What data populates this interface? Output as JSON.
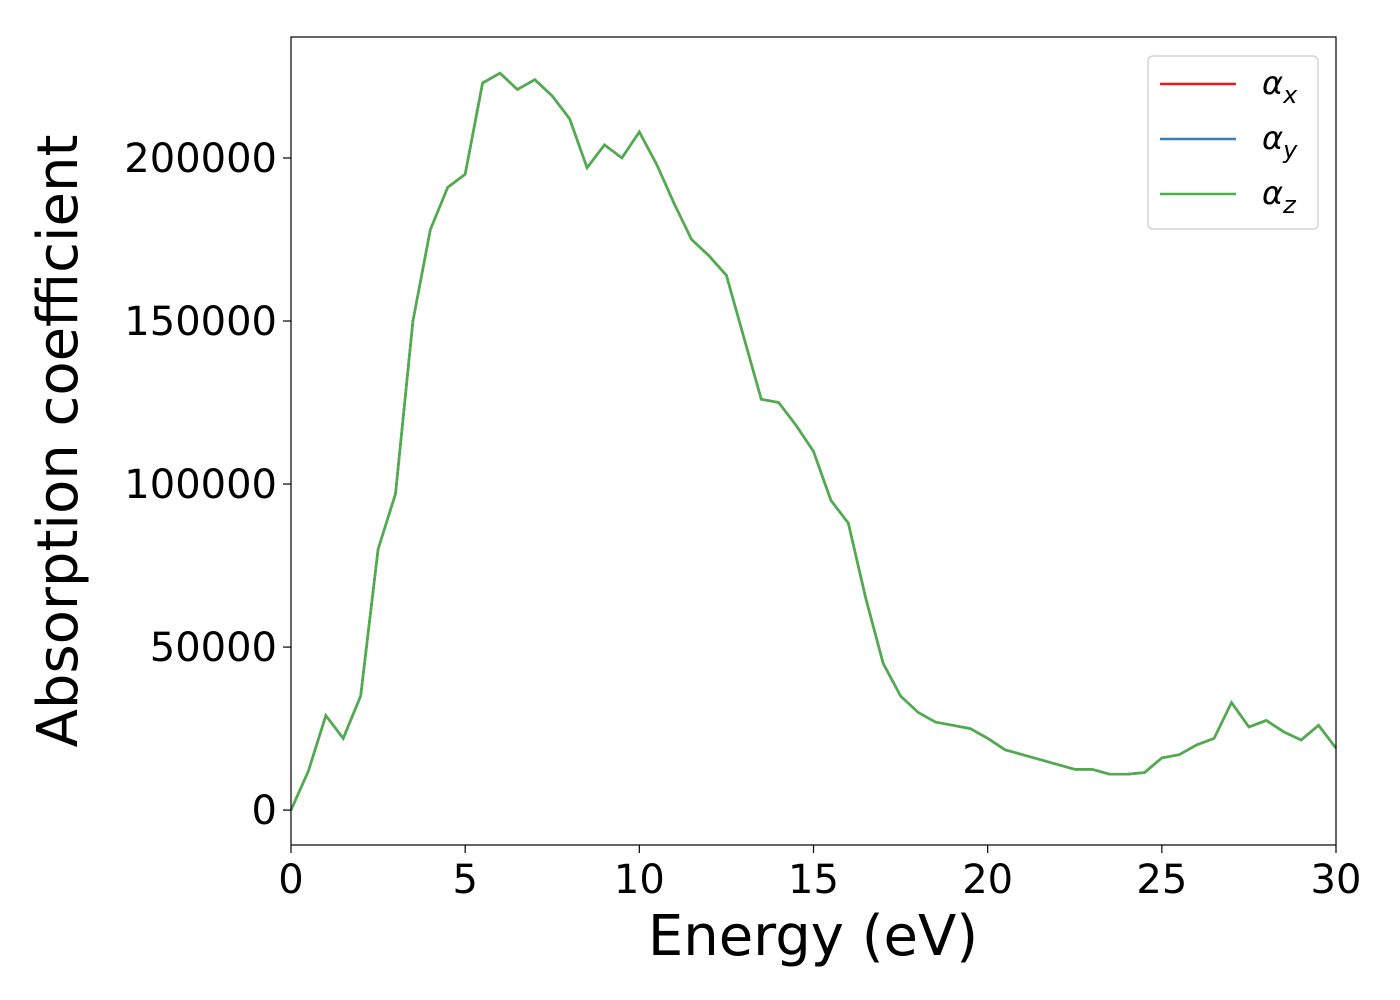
{
  "chart_data": {
    "type": "line",
    "xlabel": "Energy (eV)",
    "ylabel": "Absorption coefficient",
    "x": [
      0,
      0.5,
      1,
      1.5,
      2,
      2.5,
      3,
      3.5,
      4,
      4.5,
      5,
      5.5,
      6,
      6.5,
      7,
      7.5,
      8,
      8.5,
      9,
      9.5,
      10,
      10.5,
      11,
      11.5,
      12,
      12.5,
      13,
      13.5,
      14,
      14.5,
      15,
      15.5,
      16,
      16.5,
      17,
      17.5,
      18,
      18.5,
      19,
      19.5,
      20,
      20.5,
      21,
      21.5,
      22,
      22.5,
      23,
      23.5,
      24,
      24.5,
      25,
      25.5,
      26,
      26.5,
      27,
      27.5,
      28,
      28.5,
      29,
      29.5,
      30
    ],
    "series": [
      {
        "name": "αx",
        "color": "#e41a1c",
        "values": [
          0,
          12000,
          29000,
          22000,
          35000,
          80000,
          97000,
          150000,
          178000,
          191000,
          195000,
          223000,
          226000,
          221000,
          224000,
          219000,
          212000,
          197000,
          204000,
          200000,
          208000,
          198000,
          186000,
          175000,
          170000,
          164000,
          145000,
          126000,
          125000,
          118000,
          110000,
          95000,
          88000,
          65000,
          45000,
          35000,
          30000,
          27000,
          26000,
          25000,
          22000,
          18500,
          17000,
          15500,
          14000,
          12500,
          12500,
          11000,
          11000,
          11500,
          16000,
          17000,
          20000,
          22000,
          33000,
          25500,
          27500,
          24000,
          21500,
          26000,
          19000
        ]
      },
      {
        "name": "αy",
        "color": "#377eb8",
        "values": [
          0,
          12000,
          29000,
          22000,
          35000,
          80000,
          97000,
          150000,
          178000,
          191000,
          195000,
          223000,
          226000,
          221000,
          224000,
          219000,
          212000,
          197000,
          204000,
          200000,
          208000,
          198000,
          186000,
          175000,
          170000,
          164000,
          145000,
          126000,
          125000,
          118000,
          110000,
          95000,
          88000,
          65000,
          45000,
          35000,
          30000,
          27000,
          26000,
          25000,
          22000,
          18500,
          17000,
          15500,
          14000,
          12500,
          12500,
          11000,
          11000,
          11500,
          16000,
          17000,
          20000,
          22000,
          33000,
          25500,
          27500,
          24000,
          21500,
          26000,
          19000
        ]
      },
      {
        "name": "αz",
        "color": "#4daf4a",
        "values": [
          0,
          12000,
          29000,
          22000,
          35000,
          80000,
          97000,
          150000,
          178000,
          191000,
          195000,
          223000,
          226000,
          221000,
          224000,
          219000,
          212000,
          197000,
          204000,
          200000,
          208000,
          198000,
          186000,
          175000,
          170000,
          164000,
          145000,
          126000,
          125000,
          118000,
          110000,
          95000,
          88000,
          65000,
          45000,
          35000,
          30000,
          27000,
          26000,
          25000,
          22000,
          18500,
          17000,
          15500,
          14000,
          12500,
          12500,
          11000,
          11000,
          11500,
          16000,
          17000,
          20000,
          22000,
          33000,
          25500,
          27500,
          24000,
          21500,
          26000,
          19000
        ]
      }
    ],
    "xlim": [
      0,
      30
    ],
    "xticks": [
      0,
      5,
      10,
      15,
      20,
      25,
      30
    ],
    "ylim": [
      -10700,
      237100
    ],
    "yticks": [
      0,
      50000,
      100000,
      150000,
      200000
    ],
    "legend": "upper right"
  }
}
